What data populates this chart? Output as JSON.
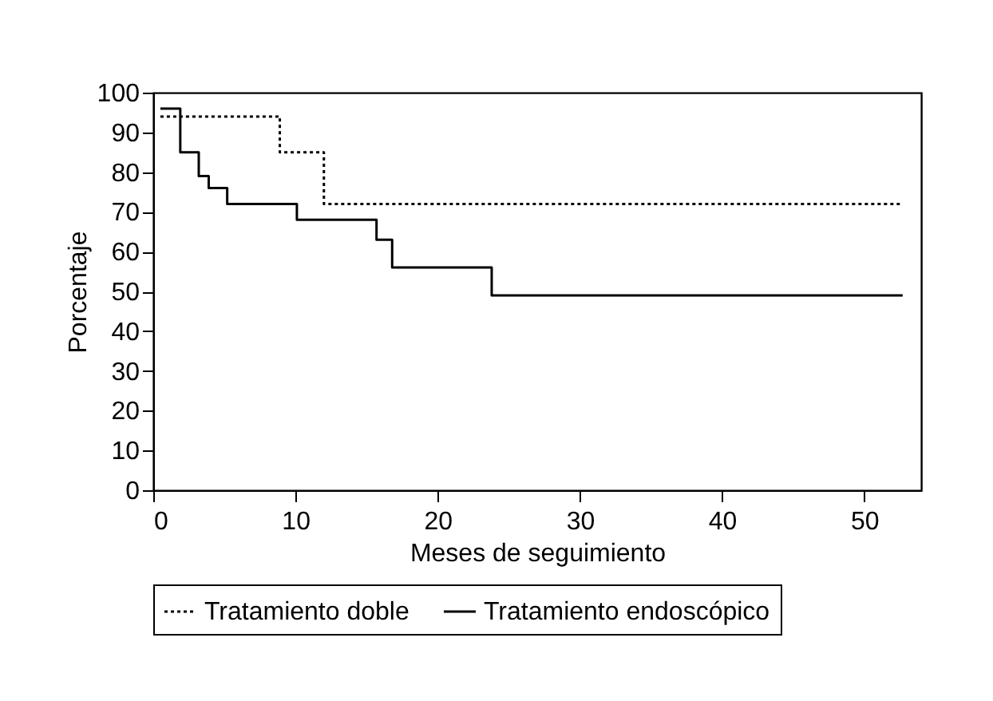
{
  "chart_data": {
    "type": "step",
    "xlabel": "Meses de seguimiento",
    "ylabel": "Porcentaje",
    "xlim": [
      0,
      54
    ],
    "xticks": [
      0,
      10,
      20,
      30,
      40,
      50
    ],
    "ylim": [
      0,
      100
    ],
    "yticks": [
      0,
      10,
      20,
      30,
      40,
      50,
      60,
      70,
      80,
      90,
      100
    ],
    "grid": false,
    "legend": "bottom",
    "marker": "none",
    "series": [
      {
        "name": "Tratamiento doble",
        "color": "#000000",
        "line_style": "dotted",
        "x": [
          0.5,
          8.9,
          12.0,
          52.5
        ],
        "values": [
          94,
          85,
          72,
          72
        ]
      },
      {
        "name": "Tratamiento endoscópico",
        "color": "#000000",
        "line_style": "solid",
        "x": [
          0.5,
          1.9,
          3.2,
          3.9,
          5.2,
          10.1,
          15.7,
          16.8,
          23.8,
          52.7
        ],
        "values": [
          96,
          85,
          79,
          76,
          72,
          68,
          63,
          56,
          49,
          49
        ]
      }
    ]
  }
}
